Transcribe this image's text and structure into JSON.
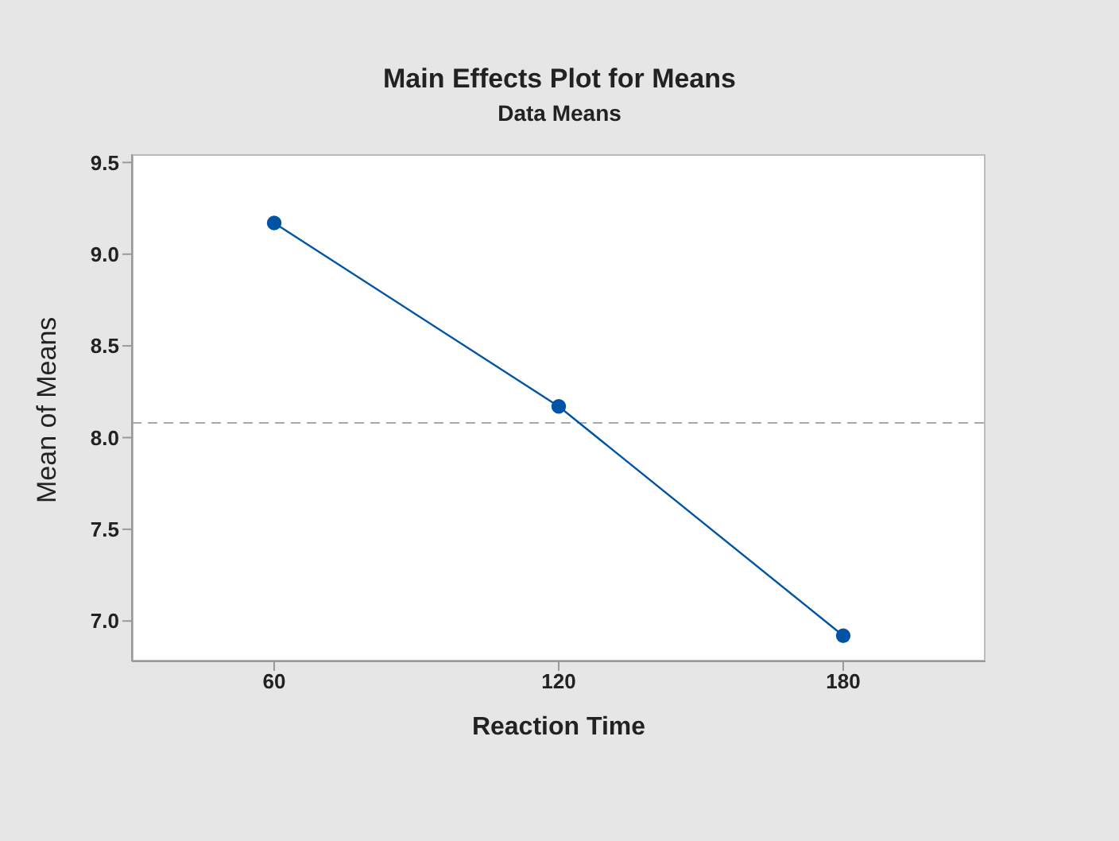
{
  "chart_data": {
    "type": "line",
    "title": "Main Effects Plot for Means",
    "subtitle": "Data Means",
    "xlabel": "Reaction Time",
    "ylabel": "Mean of Means",
    "categories": [
      "60",
      "120",
      "180"
    ],
    "series": [
      {
        "color": "#0054a6",
        "values": [
          9.17,
          8.17,
          6.92
        ]
      }
    ],
    "ylim": [
      6.78,
      9.545
    ],
    "yticks": [
      {
        "value": 7,
        "label": "7.0"
      },
      7.5,
      {
        "value": 8,
        "label": "8.0"
      },
      8.5,
      {
        "value": 9,
        "label": "9.0"
      },
      9.5
    ],
    "ref_lines": [
      {
        "axis": "y",
        "value": 8.08,
        "color": "#aaaaaa",
        "line_style": "dashed"
      }
    ],
    "grid": false,
    "legend": false,
    "marker": "circle",
    "line_style": "solid"
  }
}
